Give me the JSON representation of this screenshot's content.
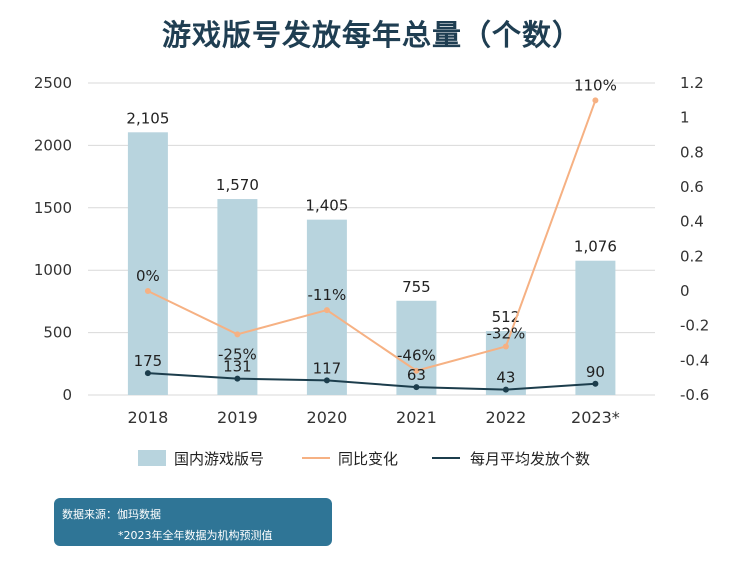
{
  "title": "游戏版号发放每年总量（个数）",
  "chart_data": {
    "type": "bar",
    "categories": [
      "2018",
      "2019",
      "2020",
      "2021",
      "2022",
      "2023*"
    ],
    "series": [
      {
        "name": "国内游戏版号",
        "type": "bar",
        "axis": "left",
        "color": "#b8d4de",
        "values": [
          2105,
          1570,
          1405,
          755,
          512,
          1076
        ],
        "labels": [
          "2,105",
          "1,570",
          "1,405",
          "755",
          "512",
          "1,076"
        ]
      },
      {
        "name": "同比变化",
        "type": "line",
        "axis": "right",
        "color": "#f6b183",
        "values": [
          0,
          -0.25,
          -0.11,
          -0.46,
          -0.32,
          1.1
        ],
        "labels": [
          "0%",
          "-25%",
          "-11%",
          "-46%",
          "-32%",
          "110%"
        ]
      },
      {
        "name": "每月平均发放个数",
        "type": "line",
        "axis": "left",
        "color": "#1c3d4c",
        "values": [
          175,
          131,
          117,
          63,
          43,
          90
        ],
        "labels": [
          "175",
          "131",
          "117",
          "63",
          "43",
          "90"
        ]
      }
    ],
    "y_left": {
      "min": 0,
      "max": 2500,
      "ticks": [
        "0",
        "500",
        "1000",
        "1500",
        "2000",
        "2500"
      ]
    },
    "y_right": {
      "min": -0.6,
      "max": 1.2,
      "ticks": [
        "-0.6",
        "-0.4",
        "-0.2",
        "0",
        "0.2",
        "0.4",
        "0.6",
        "0.8",
        "1",
        "1.2"
      ]
    },
    "grid": true,
    "legend_position": "bottom"
  },
  "source": {
    "line1": "数据来源：伽玛数据",
    "line2": "*2023年全年数据为机构预测值"
  }
}
